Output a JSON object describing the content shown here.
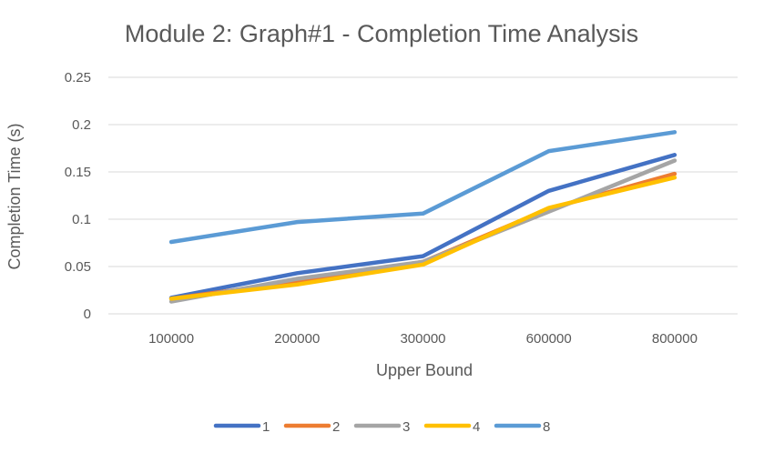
{
  "chart_data": {
    "type": "line",
    "title": "Module 2: Graph#1 - Completion Time Analysis",
    "xlabel": "Upper Bound",
    "ylabel": "Completion Time (s)",
    "categories": [
      "100000",
      "200000",
      "300000",
      "600000",
      "800000"
    ],
    "ylim": [
      0,
      0.25
    ],
    "yticks": [
      "0",
      "0.05",
      "0.1",
      "0.15",
      "0.2",
      "0.25"
    ],
    "grid": true,
    "legend_position": "bottom",
    "series": [
      {
        "name": "1",
        "color": "#4472C4",
        "values": [
          0.017,
          0.043,
          0.061,
          0.13,
          0.168
        ]
      },
      {
        "name": "2",
        "color": "#ED7D31",
        "values": [
          0.016,
          0.034,
          0.055,
          0.111,
          0.148
        ]
      },
      {
        "name": "3",
        "color": "#A5A5A5",
        "values": [
          0.013,
          0.037,
          0.055,
          0.108,
          0.162
        ]
      },
      {
        "name": "4",
        "color": "#FFC000",
        "values": [
          0.016,
          0.031,
          0.052,
          0.112,
          0.144
        ]
      },
      {
        "name": "8",
        "color": "#5B9BD5",
        "values": [
          0.076,
          0.097,
          0.106,
          0.172,
          0.192
        ]
      }
    ]
  }
}
